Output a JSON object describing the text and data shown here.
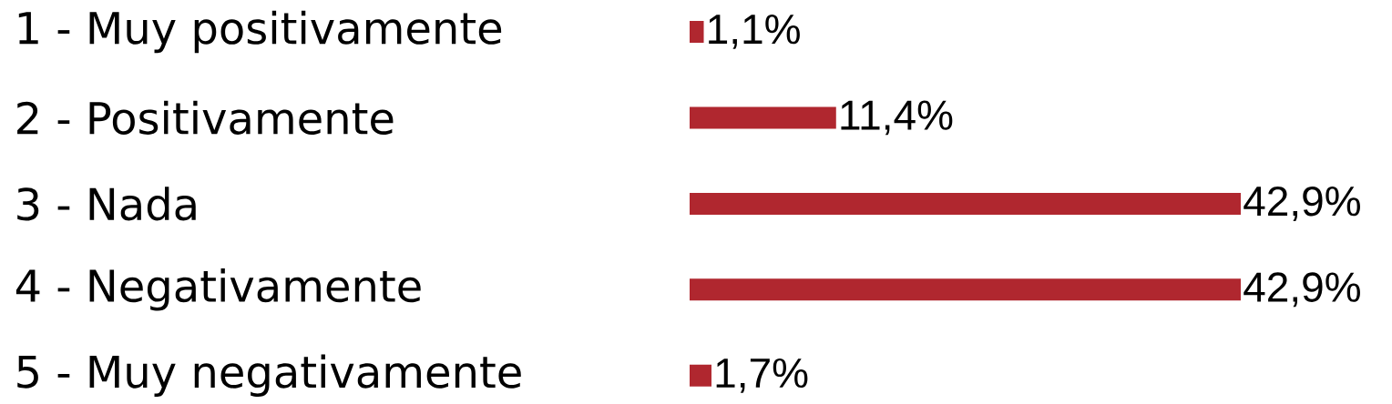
{
  "chart_data": {
    "type": "bar",
    "orientation": "horizontal",
    "categories": [
      "1 - Muy positivamente",
      "2 - Positivamente",
      "3 - Nada",
      "4 - Negativamente",
      "5 - Muy negativamente"
    ],
    "values": [
      1.1,
      11.4,
      42.9,
      42.9,
      1.7
    ],
    "value_labels": [
      "1,1%",
      "11,4%",
      "42,9%",
      "42,9%",
      "1,7%"
    ],
    "color": "#b0272f",
    "xlim": [
      0,
      42.9
    ]
  }
}
